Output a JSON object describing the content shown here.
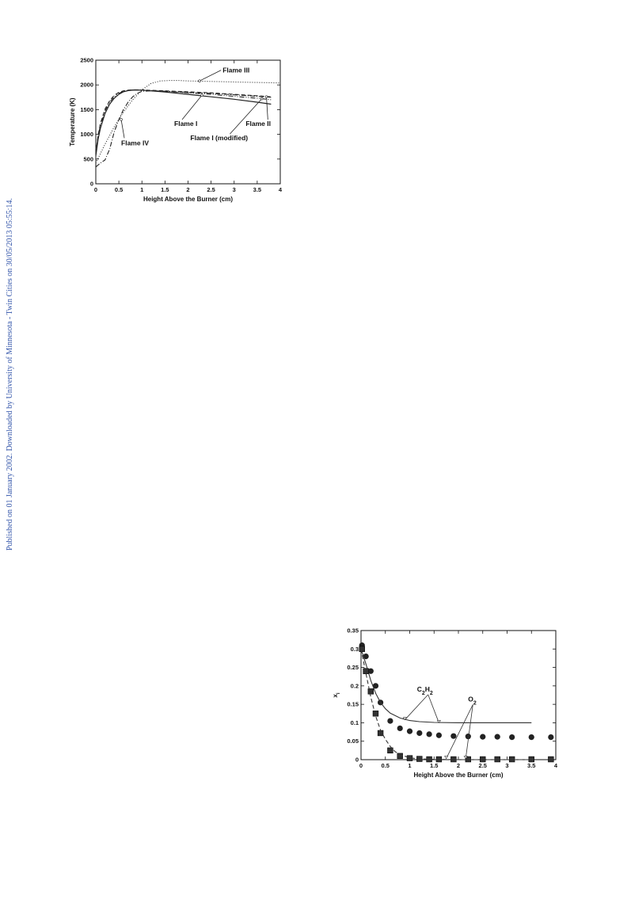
{
  "page": {
    "side_note": "Published on 01 January 2002. Downloaded by University of Minnesota - Twin Cities on 30/05/2013 05:55:14."
  },
  "chart_data": [
    {
      "type": "line",
      "title": "",
      "xlabel": "Height Above the Burner (cm)",
      "ylabel": "Temperature (K)",
      "xlim": [
        0,
        4
      ],
      "ylim": [
        0,
        2500
      ],
      "xticks": [
        0,
        0.5,
        1,
        1.5,
        2,
        2.5,
        3,
        3.5,
        4
      ],
      "xtick_labels": [
        "0",
        "0.5",
        "1",
        "1.5",
        "2",
        "2.5",
        "3",
        "3.5",
        "4"
      ],
      "yticks": [
        0,
        500,
        1000,
        1500,
        2000,
        2500
      ],
      "ytick_labels": [
        "0",
        "500",
        "1000",
        "1500",
        "2000",
        "2500"
      ],
      "grid": false,
      "series": [
        {
          "name": "Flame I",
          "style": "solid",
          "x": [
            0,
            0.05,
            0.1,
            0.2,
            0.3,
            0.4,
            0.5,
            0.6,
            0.7,
            0.8,
            0.9,
            1.0,
            1.5,
            2.0,
            2.5,
            3.0,
            3.5,
            3.8
          ],
          "y": [
            560,
            900,
            1120,
            1420,
            1610,
            1730,
            1810,
            1860,
            1885,
            1895,
            1898,
            1895,
            1855,
            1810,
            1760,
            1710,
            1650,
            1610
          ]
        },
        {
          "name": "Flame I (modified)",
          "style": "dash-dot-dot",
          "x": [
            0,
            0.05,
            0.1,
            0.2,
            0.3,
            0.4,
            0.5,
            0.6,
            0.7,
            0.8,
            0.9,
            1.0,
            1.5,
            2.0,
            2.5,
            3.0,
            3.5,
            3.8
          ],
          "y": [
            600,
            950,
            1180,
            1470,
            1650,
            1760,
            1830,
            1870,
            1890,
            1898,
            1900,
            1898,
            1870,
            1840,
            1810,
            1770,
            1730,
            1700
          ]
        },
        {
          "name": "Flame II",
          "style": "dashed",
          "x": [
            0,
            0.05,
            0.1,
            0.2,
            0.3,
            0.4,
            0.5,
            0.6,
            0.7,
            0.8,
            0.9,
            1.0,
            1.5,
            2.0,
            2.5,
            3.0,
            3.5,
            3.8
          ],
          "y": [
            620,
            980,
            1220,
            1510,
            1680,
            1790,
            1850,
            1880,
            1895,
            1900,
            1900,
            1898,
            1880,
            1860,
            1840,
            1810,
            1780,
            1760
          ]
        },
        {
          "name": "Flame III",
          "style": "dotted",
          "x": [
            0,
            0.2,
            0.4,
            0.6,
            0.8,
            1.0,
            1.2,
            1.4,
            1.6,
            1.8,
            2.0,
            2.5,
            3.0,
            3.5,
            4.0
          ],
          "y": [
            420,
            800,
            1150,
            1450,
            1700,
            1900,
            2030,
            2080,
            2090,
            2090,
            2080,
            2070,
            2060,
            2050,
            2040
          ]
        },
        {
          "name": "Flame IV",
          "style": "dash-dot",
          "x": [
            0,
            0.1,
            0.2,
            0.3,
            0.4,
            0.5,
            0.6,
            0.7,
            0.8,
            0.9,
            1.0,
            1.2,
            1.5,
            2.0,
            2.5,
            3.0,
            3.5,
            3.8
          ],
          "y": [
            340,
            420,
            480,
            700,
            1050,
            1300,
            1500,
            1650,
            1760,
            1830,
            1870,
            1880,
            1870,
            1850,
            1830,
            1800,
            1770,
            1750
          ]
        }
      ],
      "annotations": [
        {
          "text": "Flame III",
          "x": 2.75,
          "y": 2250,
          "target_x": 2.25,
          "target_y": 2080
        },
        {
          "text": "Flame I",
          "x": 1.7,
          "y": 1170,
          "target_x": 2.3,
          "target_y": 1790
        },
        {
          "text": "Flame II",
          "x": 3.25,
          "y": 1170,
          "target_x": 3.7,
          "target_y": 1760
        },
        {
          "text": "Flame I (modified)",
          "x": 2.05,
          "y": 880,
          "target_x": 3.6,
          "target_y": 1720
        },
        {
          "text": "Flame IV",
          "x": 0.55,
          "y": 780,
          "target_x": 0.55,
          "target_y": 1300
        }
      ]
    },
    {
      "type": "scatter",
      "title": "",
      "xlabel": "Height Above the Burner (cm)",
      "ylabel": "x",
      "ylabel_subscript": "i",
      "xlim": [
        0,
        4
      ],
      "ylim": [
        0,
        0.35
      ],
      "xticks": [
        0,
        0.5,
        1,
        1.5,
        2,
        2.5,
        3,
        3.5,
        4
      ],
      "xtick_labels": [
        "0",
        "0.5",
        "1",
        "1.5",
        "2",
        "2.5",
        "3",
        "3.5",
        "4"
      ],
      "yticks": [
        0,
        0.05,
        0.1,
        0.15,
        0.2,
        0.25,
        0.3,
        0.35
      ],
      "ytick_labels": [
        "0",
        "0.05",
        "0.1",
        "0.15",
        "0.2",
        "0.25",
        "0.3",
        "0.35"
      ],
      "grid": false,
      "series": [
        {
          "name": "C2H2",
          "kind": "points",
          "marker": "circle",
          "x": [
            0.02,
            0.1,
            0.2,
            0.3,
            0.4,
            0.6,
            0.8,
            1.0,
            1.2,
            1.4,
            1.6,
            1.9,
            2.2,
            2.5,
            2.8,
            3.1,
            3.5,
            3.9
          ],
          "y": [
            0.31,
            0.28,
            0.24,
            0.2,
            0.155,
            0.105,
            0.085,
            0.077,
            0.072,
            0.069,
            0.066,
            0.064,
            0.063,
            0.062,
            0.062,
            0.061,
            0.061,
            0.061
          ]
        },
        {
          "name": "C2H2",
          "kind": "line",
          "style": "solid",
          "x": [
            0,
            0.1,
            0.2,
            0.3,
            0.4,
            0.5,
            0.6,
            0.8,
            1.0,
            1.2,
            1.5,
            2.0,
            2.5,
            3.0,
            3.5
          ],
          "y": [
            0.3,
            0.26,
            0.215,
            0.18,
            0.155,
            0.138,
            0.126,
            0.113,
            0.106,
            0.103,
            0.101,
            0.1,
            0.1,
            0.1,
            0.1
          ]
        },
        {
          "name": "O2",
          "kind": "points",
          "marker": "square",
          "x": [
            0.02,
            0.1,
            0.2,
            0.3,
            0.4,
            0.6,
            0.8,
            1.0,
            1.2,
            1.4,
            1.6,
            1.9,
            2.2,
            2.5,
            2.8,
            3.1,
            3.5,
            3.9
          ],
          "y": [
            0.3,
            0.24,
            0.185,
            0.125,
            0.072,
            0.025,
            0.01,
            0.004,
            0.002,
            0.001,
            0.001,
            0.001,
            0.001,
            0.001,
            0.001,
            0.001,
            0.001,
            0.001
          ]
        },
        {
          "name": "O2",
          "kind": "line",
          "style": "dashed",
          "x": [
            0,
            0.1,
            0.2,
            0.3,
            0.4,
            0.5,
            0.6,
            0.7,
            0.8,
            1.0,
            1.2,
            1.5,
            2.0,
            2.5,
            3.0,
            3.5
          ],
          "y": [
            0.3,
            0.235,
            0.17,
            0.118,
            0.08,
            0.055,
            0.036,
            0.022,
            0.014,
            0.005,
            0.002,
            0.001,
            0,
            0,
            0,
            0
          ]
        }
      ],
      "annotations": [
        {
          "text_main": "C",
          "sub1": "2",
          "mid": "H",
          "sub2": "2",
          "x": 1.15,
          "y": 0.185,
          "targets": [
            [
              0.9,
              0.108
            ],
            [
              1.6,
              0.1
            ]
          ]
        },
        {
          "text_main": "O",
          "sub1": "2",
          "x": 2.2,
          "y": 0.158,
          "targets": [
            [
              1.75,
              0.003
            ],
            [
              2.15,
              0.003
            ]
          ]
        }
      ]
    }
  ]
}
